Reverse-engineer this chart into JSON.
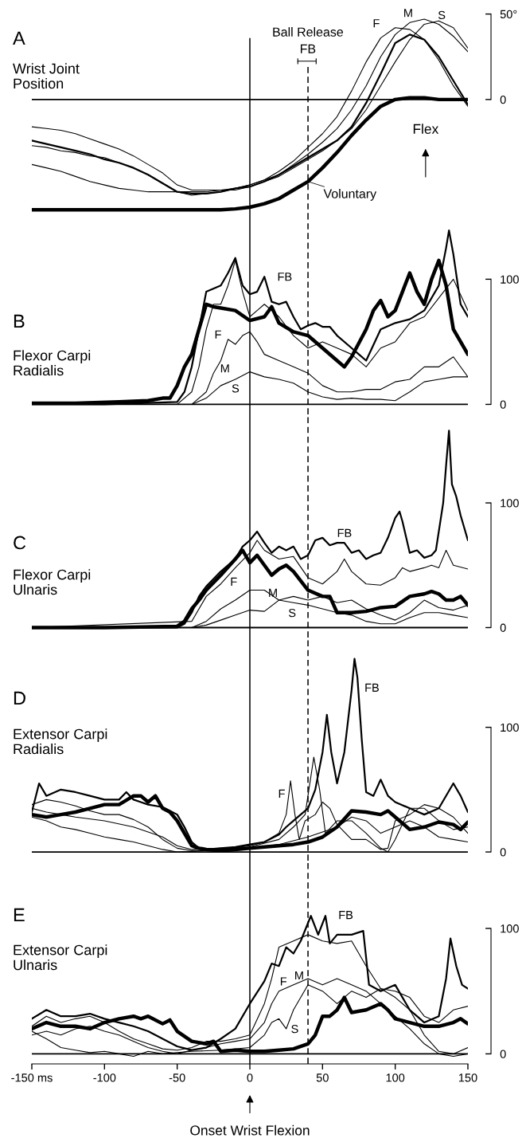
{
  "chart_data": [
    {
      "type": "line",
      "title": "A",
      "subtitle": "Wrist Joint\nPosition",
      "x": [
        -150,
        -140,
        -130,
        -120,
        -110,
        -100,
        -90,
        -80,
        -70,
        -60,
        -50,
        -40,
        -30,
        -20,
        -10,
        0,
        10,
        20,
        30,
        40,
        50,
        60,
        70,
        80,
        90,
        100,
        110,
        120,
        130,
        140,
        150
      ],
      "series": [
        {
          "color": "#000000",
          "values": [
            -64.5,
            -64.5,
            -64.5,
            -64.5,
            -64.5,
            -64.5,
            -64.5,
            -64.5,
            -64.5,
            -64.5,
            -64.5,
            -64.5,
            -64.5,
            -64.5,
            -64,
            -63,
            -61,
            -58,
            -53,
            -48,
            -40,
            -31,
            -21,
            -12,
            -4,
            0,
            1,
            1,
            0,
            0,
            0
          ]
        },
        {
          "color": "#000000",
          "values": [
            -24,
            -26,
            -28,
            -30,
            -32,
            -35,
            -37,
            -40,
            -44,
            -49,
            -54,
            -55,
            -55,
            -54,
            -52,
            -51,
            -48,
            -44,
            -39,
            -34,
            -29,
            -24,
            -16,
            -2,
            15,
            33,
            38,
            35,
            25,
            11,
            -3
          ]
        },
        {
          "color": "#000000",
          "values": [
            -27,
            -28,
            -30,
            -31,
            -33,
            -34,
            -37,
            -40,
            -44,
            -49,
            -54,
            -56,
            -55,
            -54,
            -52,
            -50,
            -47,
            -42,
            -36,
            -28,
            -20,
            -10,
            5,
            22,
            36,
            42,
            41,
            35,
            23,
            8,
            -4
          ]
        },
        {
          "color": "#000000",
          "values": [
            -16,
            -17,
            -18,
            -20,
            -23,
            -26,
            -29,
            -33,
            -38,
            -43,
            -50,
            -53,
            -53,
            -53,
            -52,
            -50,
            -47,
            -44,
            -38,
            -32,
            -25,
            -17,
            -6,
            8,
            25,
            38,
            45,
            47,
            44,
            37,
            28
          ]
        },
        {
          "color": "#000000",
          "values": [
            -38,
            -40,
            -42,
            -45,
            -48,
            -50,
            -52,
            -53,
            -54,
            -54,
            -54,
            -54,
            -54,
            -53,
            -53,
            -51,
            -48,
            -45,
            -40,
            -35,
            -30,
            -24,
            -17,
            -6,
            8,
            22,
            35,
            44,
            46,
            42,
            30
          ]
        }
      ],
      "xlim": [
        -150,
        150
      ],
      "ylim": [
        -70,
        50
      ],
      "yticks": [
        0,
        {
          "value": 50,
          "label": "50°"
        }
      ],
      "tick_labels": "y",
      "ref_lines": [
        {
          "axis": "x",
          "value": 0,
          "color": "#000000",
          "line_style": "solid"
        },
        {
          "axis": "x",
          "value": 40,
          "color": "#000000",
          "line_style": "dashed"
        },
        {
          "axis": "y",
          "value": 0,
          "color": "#000000",
          "line_style": "solid"
        }
      ],
      "annotations": [
        "Ball Release",
        "FB",
        {
          "text": "Voluntary",
          "x": 40,
          "y": -48
        },
        "F",
        "M",
        "S",
        "Flex"
      ]
    },
    {
      "type": "line",
      "title": "B",
      "subtitle": "Flexor Carpi\nRadialis",
      "series": [
        {
          "color": "#000000",
          "x": [
            -150,
            -120,
            -90,
            -70,
            -60,
            -55,
            -50,
            -45,
            -40,
            -35,
            -30,
            -25,
            -20,
            -10,
            0,
            10,
            15,
            20,
            30,
            40,
            50,
            60,
            65,
            70,
            80,
            85,
            90,
            95,
            100,
            105,
            110,
            115,
            120,
            125,
            130,
            135,
            140,
            145,
            150
          ],
          "values": [
            1,
            1,
            2,
            3,
            5,
            5,
            15,
            30,
            40,
            60,
            80,
            78,
            77,
            75,
            67,
            70,
            78,
            65,
            58,
            55,
            45,
            35,
            30,
            38,
            60,
            75,
            83,
            70,
            75,
            90,
            105,
            90,
            80,
            100,
            115,
            95,
            60,
            50,
            40
          ]
        },
        {
          "color": "#000000",
          "x": [
            -150,
            -100,
            -50,
            -45,
            -40,
            -35,
            -30,
            -20,
            -15,
            -10,
            -5,
            0,
            5,
            10,
            15,
            20,
            25,
            30,
            35,
            40,
            45,
            50,
            55,
            60,
            70,
            75,
            80,
            90,
            100,
            110,
            120,
            130,
            135,
            137,
            140,
            145,
            150
          ],
          "values": [
            0,
            0,
            2,
            10,
            30,
            60,
            90,
            95,
            105,
            117,
            95,
            88,
            90,
            102,
            82,
            80,
            82,
            70,
            60,
            63,
            65,
            62,
            62,
            55,
            45,
            40,
            35,
            60,
            65,
            68,
            75,
            95,
            125,
            139,
            120,
            80,
            70
          ]
        },
        {
          "color": "#000000",
          "x": [
            -150,
            -50,
            -40,
            -35,
            -30,
            -25,
            -20,
            -15,
            -10,
            -5,
            0,
            5,
            10,
            20,
            30,
            40,
            50,
            60,
            70,
            80,
            90,
            100,
            110,
            120,
            130,
            140,
            150
          ],
          "values": [
            0,
            0,
            10,
            30,
            60,
            80,
            80,
            95,
            115,
            90,
            70,
            75,
            80,
            70,
            55,
            45,
            50,
            45,
            40,
            30,
            45,
            50,
            65,
            70,
            85,
            100,
            75
          ]
        },
        {
          "color": "#000000",
          "x": [
            -150,
            -40,
            -30,
            -25,
            -20,
            -15,
            -10,
            -5,
            0,
            5,
            10,
            20,
            30,
            40,
            50,
            60,
            70,
            80,
            90,
            100,
            110,
            120,
            130,
            140,
            150
          ],
          "values": [
            0,
            0,
            10,
            25,
            35,
            52,
            48,
            55,
            58,
            50,
            40,
            35,
            30,
            25,
            15,
            10,
            10,
            12,
            12,
            18,
            20,
            30,
            30,
            38,
            22
          ]
        },
        {
          "color": "#000000",
          "x": [
            -150,
            -40,
            -30,
            -20,
            -10,
            0,
            10,
            20,
            30,
            40,
            50,
            60,
            70,
            80,
            90,
            100,
            110,
            120,
            130,
            140,
            150
          ],
          "values": [
            0,
            0,
            5,
            15,
            20,
            26,
            22,
            20,
            17,
            10,
            6,
            4,
            5,
            4,
            4,
            3,
            10,
            18,
            20,
            22,
            22
          ]
        }
      ],
      "xlim": [
        -150,
        150
      ],
      "ylim": [
        -8,
        148
      ],
      "yticks": [
        0,
        100
      ],
      "tick_labels": "y",
      "ref_lines": [
        {
          "axis": "x",
          "value": 0,
          "color": "#000000",
          "line_style": "solid"
        },
        {
          "axis": "x",
          "value": 40,
          "color": "#000000",
          "line_style": "dashed"
        },
        {
          "axis": "y",
          "value": 0,
          "color": "#000000",
          "line_style": "solid"
        }
      ],
      "annotations": [
        "FB",
        "F",
        "M",
        "S"
      ]
    },
    {
      "type": "line",
      "title": "C",
      "subtitle": "Flexor Carpi\nUlnaris",
      "series": [
        {
          "color": "#000000",
          "x": [
            -150,
            -100,
            -50,
            -45,
            -40,
            -35,
            -30,
            -20,
            -10,
            -5,
            0,
            5,
            10,
            15,
            20,
            25,
            30,
            40,
            50,
            55,
            60,
            70,
            80,
            90,
            100,
            110,
            120,
            125,
            130,
            135,
            140,
            145,
            150
          ],
          "values": [
            0,
            0,
            1,
            5,
            15,
            22,
            30,
            42,
            55,
            62,
            52,
            58,
            50,
            42,
            47,
            50,
            45,
            30,
            25,
            25,
            12,
            12,
            13,
            16,
            17,
            25,
            27,
            29,
            27,
            22,
            22,
            25,
            18
          ]
        },
        {
          "color": "#000000",
          "x": [
            -150,
            -50,
            -45,
            -40,
            -35,
            -30,
            -20,
            -10,
            -5,
            0,
            5,
            10,
            15,
            20,
            25,
            30,
            35,
            40,
            45,
            50,
            55,
            60,
            65,
            70,
            75,
            80,
            85,
            90,
            95,
            100,
            103,
            105,
            110,
            115,
            120,
            125,
            128,
            133,
            135,
            137,
            139,
            142,
            145,
            150
          ],
          "values": [
            0,
            0,
            3,
            12,
            25,
            33,
            45,
            55,
            65,
            70,
            77,
            68,
            60,
            65,
            62,
            65,
            55,
            58,
            70,
            72,
            66,
            68,
            68,
            60,
            62,
            55,
            58,
            60,
            72,
            88,
            93,
            85,
            60,
            62,
            56,
            58,
            62,
            100,
            130,
            158,
            115,
            105,
            90,
            70
          ]
        },
        {
          "color": "#000000",
          "x": [
            -150,
            -40,
            -30,
            -20,
            -10,
            0,
            5,
            10,
            20,
            30,
            40,
            50,
            60,
            65,
            70,
            80,
            90,
            100,
            105,
            110,
            120,
            125,
            130,
            135,
            140,
            150
          ],
          "values": [
            0,
            5,
            25,
            35,
            48,
            60,
            70,
            62,
            55,
            57,
            40,
            35,
            45,
            55,
            45,
            35,
            34,
            40,
            48,
            45,
            48,
            50,
            48,
            62,
            50,
            47
          ]
        },
        {
          "color": "#000000",
          "x": [
            -150,
            -40,
            -30,
            -20,
            -10,
            0,
            10,
            20,
            30,
            40,
            50,
            60,
            70,
            80,
            90,
            100,
            110,
            120,
            130,
            140,
            150
          ],
          "values": [
            0,
            0,
            5,
            15,
            22,
            30,
            30,
            22,
            25,
            22,
            25,
            20,
            22,
            15,
            10,
            6,
            12,
            22,
            16,
            14,
            18
          ]
        },
        {
          "color": "#000000",
          "x": [
            -150,
            -40,
            -30,
            -20,
            -10,
            0,
            10,
            20,
            30,
            40,
            50,
            60,
            70,
            80,
            90,
            100,
            110,
            120,
            130,
            140,
            150
          ],
          "values": [
            0,
            0,
            2,
            6,
            10,
            14,
            13,
            22,
            20,
            18,
            15,
            12,
            10,
            5,
            3,
            3,
            8,
            12,
            12,
            10,
            8
          ]
        }
      ],
      "xlim": [
        -150,
        150
      ],
      "ylim": [
        -8,
        171
      ],
      "yticks": [
        0,
        100
      ],
      "tick_labels": "y",
      "ref_lines": [
        {
          "axis": "x",
          "value": 0,
          "color": "#000000",
          "line_style": "solid"
        },
        {
          "axis": "x",
          "value": 40,
          "color": "#000000",
          "line_style": "dashed"
        },
        {
          "axis": "y",
          "value": 0,
          "color": "#000000",
          "line_style": "solid"
        }
      ],
      "annotations": [
        "FB",
        "F",
        "M",
        "S"
      ]
    },
    {
      "type": "line",
      "title": "D",
      "subtitle": "Extensor Carpi\nRadialis",
      "series": [
        {
          "color": "#000000",
          "x": [
            -150,
            -140,
            -130,
            -120,
            -110,
            -100,
            -90,
            -80,
            -75,
            -70,
            -65,
            -60,
            -55,
            -50,
            -45,
            -40,
            -35,
            -30,
            -20,
            -10,
            0,
            10,
            20,
            30,
            40,
            50,
            60,
            70,
            80,
            90,
            95,
            100,
            110,
            120,
            130,
            140,
            145,
            150
          ],
          "values": [
            30,
            28,
            30,
            32,
            35,
            38,
            38,
            45,
            45,
            40,
            45,
            35,
            32,
            25,
            15,
            5,
            3,
            2,
            1,
            2,
            3,
            4,
            5,
            6,
            8,
            12,
            20,
            33,
            32,
            30,
            33,
            28,
            18,
            20,
            24,
            22,
            18,
            24
          ]
        },
        {
          "color": "#000000",
          "x": [
            -150,
            -145,
            -140,
            -130,
            -120,
            -110,
            -100,
            -90,
            -85,
            -80,
            -75,
            -70,
            -60,
            -50,
            -45,
            -40,
            -35,
            -30,
            -20,
            -10,
            0,
            10,
            20,
            25,
            30,
            35,
            40,
            45,
            50,
            53,
            56,
            60,
            65,
            70,
            72,
            74,
            77,
            80,
            85,
            90,
            95,
            100,
            110,
            120,
            130,
            140,
            145,
            150
          ],
          "values": [
            32,
            55,
            45,
            50,
            48,
            45,
            42,
            42,
            48,
            42,
            40,
            38,
            36,
            30,
            20,
            8,
            3,
            2,
            3,
            4,
            6,
            8,
            14,
            20,
            25,
            30,
            35,
            50,
            80,
            110,
            80,
            55,
            80,
            130,
            155,
            140,
            90,
            48,
            45,
            58,
            45,
            40,
            35,
            30,
            35,
            55,
            45,
            32
          ]
        },
        {
          "color": "#000000",
          "x": [
            -150,
            -140,
            -130,
            -120,
            -110,
            -100,
            -90,
            -80,
            -70,
            -60,
            -50,
            -40,
            -20,
            0,
            10,
            20,
            25,
            28,
            31,
            34,
            38,
            45,
            50,
            55,
            60,
            70,
            80,
            90,
            95,
            100,
            110,
            120,
            130,
            140,
            150
          ],
          "values": [
            38,
            42,
            40,
            37,
            33,
            30,
            30,
            26,
            20,
            10,
            3,
            1,
            2,
            5,
            8,
            15,
            30,
            57,
            30,
            10,
            25,
            30,
            40,
            35,
            22,
            10,
            10,
            2,
            3,
            25,
            30,
            38,
            35,
            28,
            15
          ]
        },
        {
          "color": "#000000",
          "x": [
            -150,
            -140,
            -130,
            -120,
            -100,
            -80,
            -60,
            -50,
            -40,
            0,
            20,
            30,
            38,
            44,
            48,
            52,
            60,
            70,
            80,
            90,
            95,
            100,
            110,
            120,
            130,
            140,
            150
          ],
          "values": [
            35,
            32,
            30,
            28,
            25,
            20,
            12,
            5,
            2,
            4,
            10,
            20,
            30,
            76,
            50,
            15,
            25,
            25,
            15,
            3,
            0,
            10,
            35,
            35,
            25,
            18,
            20
          ]
        },
        {
          "color": "#000000",
          "x": [
            -150,
            -140,
            -130,
            -120,
            -110,
            -100,
            -90,
            -80,
            -70,
            -60,
            -50,
            -30,
            0,
            20,
            40,
            60,
            70,
            80,
            90,
            100,
            110,
            120,
            130,
            140,
            150
          ],
          "values": [
            28,
            25,
            20,
            18,
            15,
            12,
            10,
            8,
            5,
            2,
            0,
            1,
            3,
            6,
            12,
            20,
            28,
            25,
            15,
            20,
            25,
            20,
            12,
            10,
            8
          ]
        }
      ],
      "xlim": [
        -150,
        150
      ],
      "ylim": [
        -7,
        172
      ],
      "yticks": [
        0,
        100
      ],
      "tick_labels": "y",
      "ref_lines": [
        {
          "axis": "x",
          "value": 0,
          "color": "#000000",
          "line_style": "solid"
        },
        {
          "axis": "x",
          "value": 40,
          "color": "#000000",
          "line_style": "dashed"
        },
        {
          "axis": "y",
          "value": 0,
          "color": "#000000",
          "line_style": "solid"
        }
      ],
      "annotations": [
        "FB",
        "F"
      ]
    },
    {
      "type": "line",
      "title": "E",
      "subtitle": "Extensor Carpi\nUlnaris",
      "series": [
        {
          "color": "#000000",
          "x": [
            -150,
            -140,
            -130,
            -120,
            -110,
            -100,
            -90,
            -80,
            -75,
            -70,
            -60,
            -55,
            -50,
            -40,
            -30,
            -25,
            -20,
            -10,
            0,
            10,
            20,
            30,
            40,
            45,
            50,
            55,
            60,
            65,
            70,
            80,
            90,
            95,
            100,
            110,
            120,
            130,
            140,
            145,
            150
          ],
          "values": [
            20,
            25,
            22,
            22,
            20,
            25,
            28,
            30,
            28,
            30,
            24,
            27,
            18,
            10,
            8,
            10,
            2,
            3,
            2,
            2,
            3,
            4,
            8,
            15,
            30,
            30,
            35,
            45,
            33,
            35,
            40,
            35,
            28,
            25,
            22,
            22,
            25,
            28,
            24
          ]
        },
        {
          "color": "#000000",
          "x": [
            -150,
            -140,
            -130,
            -120,
            -110,
            -100,
            -90,
            -80,
            -70,
            -60,
            -50,
            -40,
            -30,
            -20,
            -10,
            0,
            10,
            15,
            20,
            25,
            30,
            35,
            42,
            47,
            52,
            55,
            60,
            70,
            78,
            82,
            90,
            100,
            105,
            110,
            115,
            120,
            130,
            135,
            138,
            142,
            146,
            150
          ],
          "values": [
            28,
            35,
            30,
            30,
            32,
            28,
            25,
            22,
            18,
            12,
            6,
            3,
            5,
            12,
            20,
            40,
            58,
            72,
            70,
            85,
            80,
            90,
            110,
            95,
            110,
            88,
            95,
            95,
            98,
            55,
            50,
            55,
            45,
            35,
            30,
            25,
            30,
            60,
            92,
            70,
            55,
            52
          ]
        },
        {
          "color": "#000000",
          "x": [
            -150,
            -140,
            -130,
            -120,
            -110,
            -100,
            -90,
            -80,
            -70,
            -60,
            -50,
            -40,
            -30,
            -20,
            -10,
            0,
            10,
            15,
            20,
            30,
            40,
            50,
            60,
            70,
            80,
            90,
            100,
            110,
            120,
            130,
            140,
            150
          ],
          "values": [
            22,
            30,
            25,
            28,
            30,
            25,
            18,
            12,
            8,
            4,
            3,
            5,
            10,
            10,
            12,
            15,
            40,
            60,
            85,
            90,
            95,
            90,
            88,
            90,
            70,
            52,
            45,
            35,
            15,
            2,
            0,
            5
          ]
        },
        {
          "color": "#000000",
          "x": [
            -150,
            -140,
            -130,
            -120,
            -110,
            -100,
            -90,
            -80,
            -70,
            -60,
            -50,
            -40,
            -30,
            -20,
            -10,
            0,
            10,
            15,
            20,
            30,
            40,
            50,
            60,
            70,
            80,
            90,
            100,
            110,
            120,
            130,
            140,
            150
          ],
          "values": [
            15,
            18,
            15,
            20,
            22,
            18,
            15,
            10,
            5,
            2,
            0,
            3,
            5,
            8,
            10,
            12,
            25,
            40,
            50,
            55,
            60,
            55,
            60,
            55,
            50,
            40,
            30,
            20,
            8,
            0,
            -2,
            0
          ]
        },
        {
          "color": "#000000",
          "x": [
            -150,
            -140,
            -130,
            -120,
            -110,
            -100,
            -90,
            -80,
            -70,
            -60,
            -40,
            -20,
            0,
            10,
            15,
            20,
            25,
            30,
            40,
            50,
            60,
            70,
            80,
            90,
            100,
            110,
            120,
            130,
            140,
            150
          ],
          "values": [
            18,
            12,
            5,
            3,
            1,
            2,
            0,
            -2,
            2,
            0,
            2,
            3,
            5,
            15,
            25,
            28,
            20,
            35,
            55,
            50,
            40,
            50,
            45,
            52,
            50,
            45,
            30,
            25,
            35,
            38
          ]
        }
      ],
      "xlim": [
        -150,
        150
      ],
      "xticks": [
        {
          "value": -150,
          "label": "-150 ms"
        },
        -100,
        -50,
        0,
        50,
        100,
        150
      ],
      "ylim": [
        -8,
        154
      ],
      "yticks": [
        0,
        100
      ],
      "ref_lines": [
        {
          "axis": "x",
          "value": 0,
          "color": "#000000",
          "line_style": "solid"
        },
        {
          "axis": "x",
          "value": 40,
          "color": "#000000",
          "line_style": "dashed"
        },
        {
          "axis": "y",
          "value": 0,
          "color": "#000000",
          "line_style": "solid"
        }
      ],
      "annotations": [
        "FB",
        "F",
        "M",
        "S",
        "Onset Wrist Flexion"
      ]
    }
  ]
}
